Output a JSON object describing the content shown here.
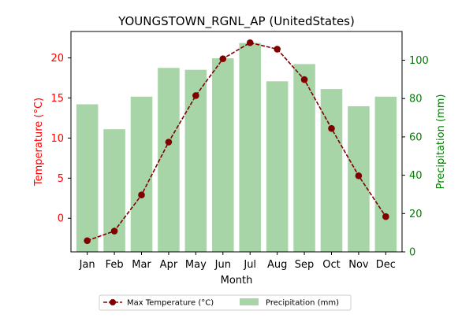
{
  "chart_data": {
    "type": "bar+line",
    "title": "YOUNGSTOWN_RGNL_AP (UnitedStates)",
    "xlabel": "Month",
    "ylabel_left": "Temperature (°C)",
    "ylabel_right": "Precipitation (mm)",
    "categories": [
      "Jan",
      "Feb",
      "Mar",
      "Apr",
      "May",
      "Jun",
      "Jul",
      "Aug",
      "Sep",
      "Oct",
      "Nov",
      "Dec"
    ],
    "series": [
      {
        "name": "Max Temperature (°C)",
        "type": "line",
        "axis": "left",
        "values": [
          -2.8,
          -1.6,
          2.9,
          9.5,
          15.3,
          19.9,
          21.9,
          21.1,
          17.3,
          11.2,
          5.3,
          0.2
        ]
      },
      {
        "name": "Precipitation (mm)",
        "type": "bar",
        "axis": "right",
        "values": [
          77,
          64,
          81,
          96,
          95,
          101,
          109,
          89,
          98,
          85,
          76,
          81
        ]
      }
    ],
    "ylim_left": [
      -4.2,
      23.3
    ],
    "yticks_left": [
      0,
      5,
      10,
      15,
      20
    ],
    "ylim_right": [
      0,
      115
    ],
    "yticks_right": [
      0,
      20,
      40,
      60,
      80,
      100
    ],
    "grid": false,
    "legend_position": "bottom-center",
    "colors": {
      "line": "#800000",
      "bar": "#a8d5a8",
      "left_axis": "#ff0000",
      "right_axis": "#008000"
    }
  }
}
